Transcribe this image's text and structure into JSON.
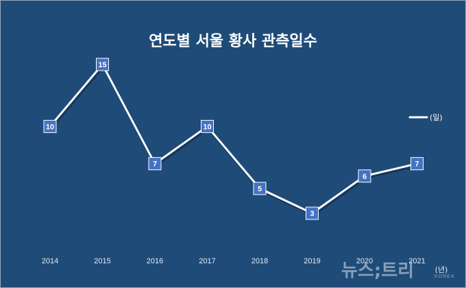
{
  "chart_data": {
    "type": "line",
    "title": "연도별 서울  황사 관측일수",
    "categories": [
      "2014",
      "2015",
      "2016",
      "2017",
      "2018",
      "2019",
      "2020",
      "2021"
    ],
    "series": [
      {
        "name": "(일)",
        "values": [
          10,
          15,
          7,
          10,
          5,
          3,
          6,
          7
        ]
      }
    ],
    "xlabel": "(년)",
    "ylabel": "",
    "ylim": [
      0,
      15
    ],
    "grid": false,
    "legend": "right",
    "data_labels": true,
    "colors": {
      "background": "#1f4b78",
      "line": "#ffffff",
      "marker": "#4472c4",
      "drop_line": "#c9d6e4"
    }
  },
  "watermark": {
    "text": "뉴스;트리",
    "sub": "KOREA"
  }
}
